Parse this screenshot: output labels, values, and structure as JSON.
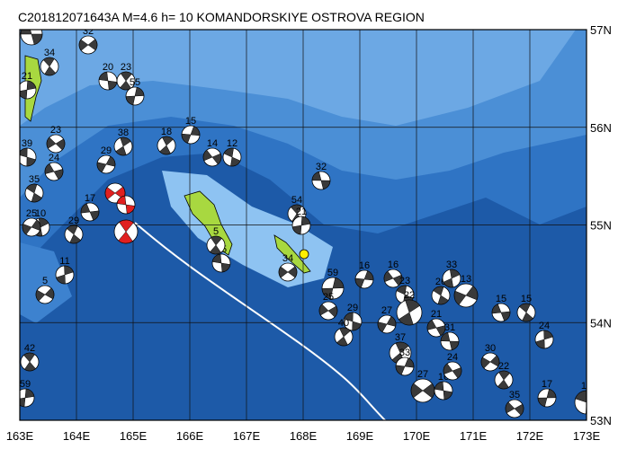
{
  "title": "C201812071643A M=4.6 h= 10 KOMANDORSKIYE OSTROVA REGION",
  "x_axis": {
    "labels": [
      "163E",
      "164E",
      "165E",
      "166E",
      "167E",
      "168E",
      "169E",
      "170E",
      "171E",
      "172E",
      "173E"
    ]
  },
  "y_axis": {
    "labels": [
      "57N",
      "56N",
      "55N",
      "54N",
      "53N"
    ]
  },
  "event_labels": [
    "47",
    "34",
    "21",
    "32",
    "20",
    "23",
    "55",
    "23",
    "39",
    "18",
    "15",
    "14",
    "12",
    "38",
    "29",
    "24",
    "35",
    "10",
    "25",
    "17",
    "29",
    "11",
    "5",
    "32",
    "54",
    "21",
    "34",
    "15",
    "5",
    "59",
    "25",
    "29",
    "40",
    "16",
    "16",
    "23",
    "22",
    "27",
    "21",
    "26",
    "33",
    "13",
    "15",
    "15",
    "24",
    "30",
    "31",
    "42",
    "59",
    "27",
    "16",
    "22",
    "17",
    "35",
    "13",
    "37",
    "33",
    "24"
  ]
}
